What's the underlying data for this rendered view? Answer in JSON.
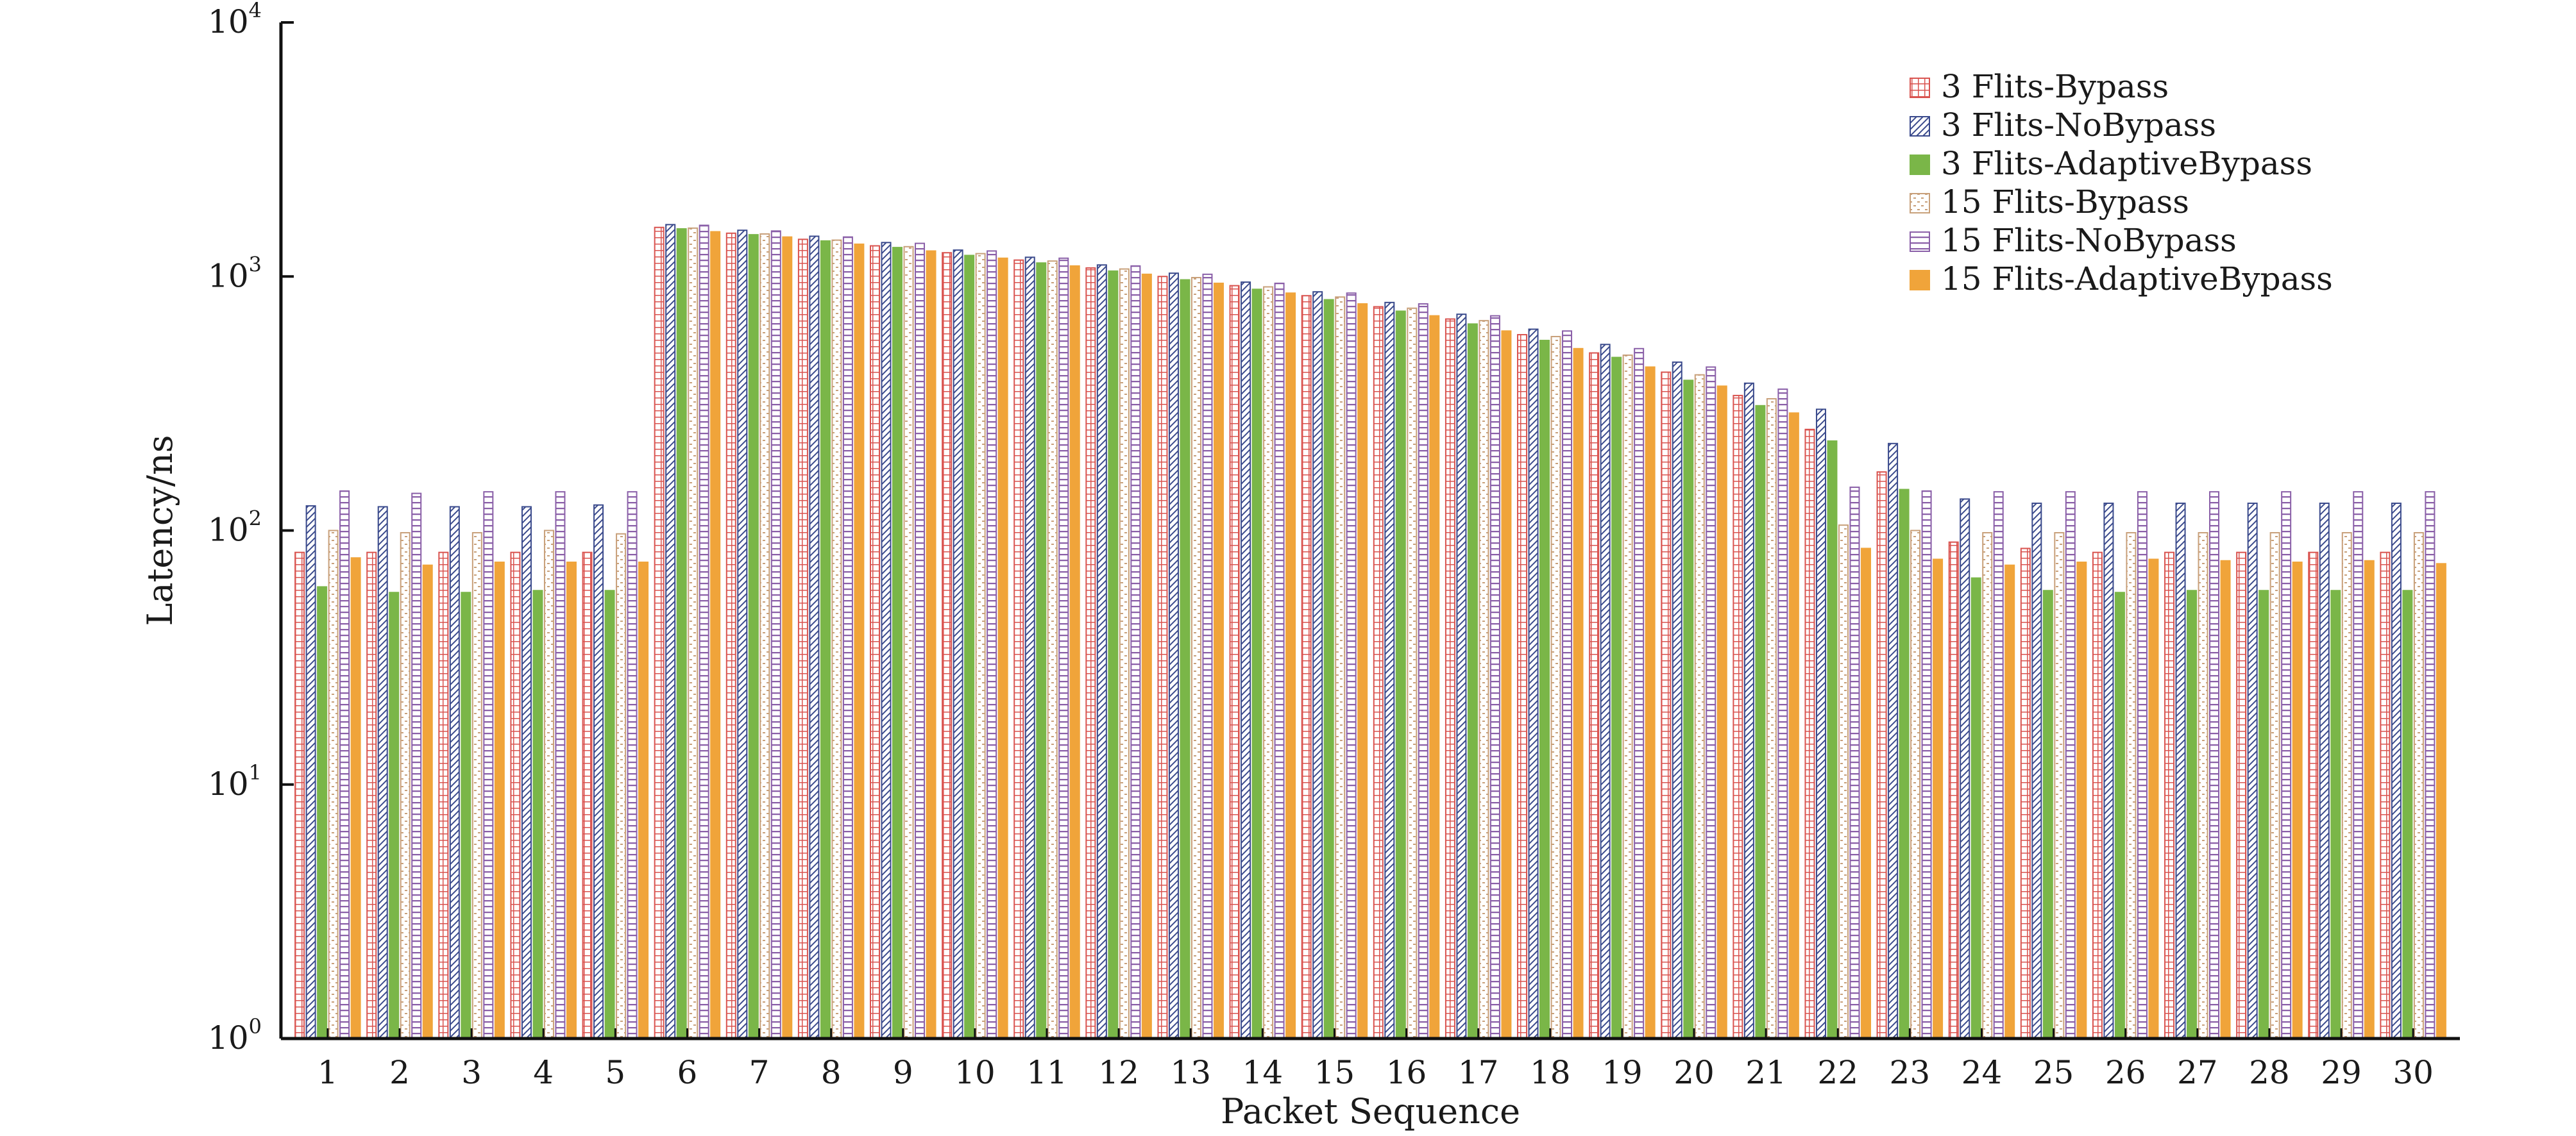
{
  "chart_data": {
    "type": "bar",
    "title": "",
    "xlabel": "Packet Sequence",
    "ylabel": "Latency/ns",
    "yscale": "log",
    "ylim": [
      1,
      10000
    ],
    "yticks": [
      {
        "base": "10",
        "exp": "0",
        "value": 1
      },
      {
        "base": "10",
        "exp": "1",
        "value": 10
      },
      {
        "base": "10",
        "exp": "2",
        "value": 100
      },
      {
        "base": "10",
        "exp": "3",
        "value": 1000
      },
      {
        "base": "10",
        "exp": "4",
        "value": 10000
      }
    ],
    "grid": false,
    "legend_position": "top-right",
    "categories": [
      "1",
      "2",
      "3",
      "4",
      "5",
      "6",
      "7",
      "8",
      "9",
      "10",
      "11",
      "12",
      "13",
      "14",
      "15",
      "16",
      "17",
      "18",
      "19",
      "20",
      "21",
      "22",
      "23",
      "24",
      "25",
      "26",
      "27",
      "28",
      "29",
      "30"
    ],
    "series": [
      {
        "name": "3 Flits-Bypass",
        "color": "#d9534f",
        "pattern": "grid",
        "values": [
          82,
          82,
          82,
          82,
          82,
          1560,
          1480,
          1400,
          1320,
          1240,
          1160,
          1080,
          1000,
          920,
          840,
          760,
          680,
          590,
          500,
          420,
          340,
          250,
          170,
          90,
          85,
          82,
          82,
          82,
          82,
          82
        ]
      },
      {
        "name": "3 Flits-NoBypass",
        "color": "#3a4a8c",
        "pattern": "diagonal",
        "values": [
          125,
          124,
          124,
          124,
          126,
          1600,
          1520,
          1440,
          1360,
          1270,
          1190,
          1110,
          1030,
          950,
          870,
          790,
          710,
          620,
          540,
          460,
          380,
          300,
          220,
          133,
          128,
          128,
          128,
          128,
          128,
          128
        ]
      },
      {
        "name": "3 Flits-AdaptiveBypass",
        "color": "#7ab648",
        "pattern": "solid",
        "values": [
          60,
          57,
          57,
          58,
          58,
          1540,
          1460,
          1380,
          1300,
          1210,
          1130,
          1050,
          970,
          890,
          810,
          730,
          650,
          560,
          480,
          390,
          310,
          225,
          145,
          65,
          58,
          57,
          58,
          58,
          58,
          58
        ]
      },
      {
        "name": "15 Flits-Bypass",
        "color": "#c8a07a",
        "pattern": "dashed",
        "values": [
          100,
          98,
          98,
          100,
          97,
          1550,
          1470,
          1390,
          1310,
          1230,
          1150,
          1070,
          990,
          910,
          830,
          750,
          670,
          580,
          490,
          410,
          330,
          105,
          100,
          98,
          98,
          98,
          98,
          98,
          98,
          98
        ]
      },
      {
        "name": "15 Flits-NoBypass",
        "color": "#8a5fa8",
        "pattern": "horizontal",
        "values": [
          143,
          140,
          142,
          142,
          142,
          1590,
          1510,
          1430,
          1350,
          1260,
          1180,
          1100,
          1020,
          940,
          860,
          780,
          700,
          610,
          520,
          440,
          360,
          148,
          143,
          142,
          142,
          142,
          142,
          142,
          142,
          142
        ]
      },
      {
        "name": "15 Flits-AdaptiveBypass",
        "color": "#f0a43a",
        "pattern": "solid",
        "values": [
          78,
          73,
          75,
          75,
          75,
          1500,
          1430,
          1340,
          1260,
          1180,
          1100,
          1020,
          940,
          860,
          780,
          700,
          610,
          520,
          440,
          370,
          290,
          85,
          77,
          73,
          75,
          77,
          76,
          75,
          76,
          74
        ]
      }
    ]
  }
}
